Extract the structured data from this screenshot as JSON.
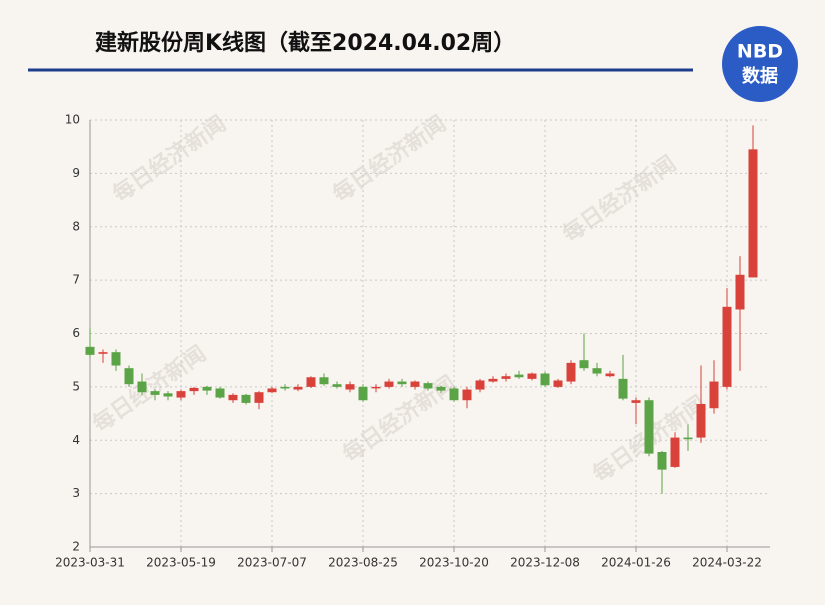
{
  "chart_data": {
    "type": "candlestick",
    "title": "建新股份周K线图（截至2024.04.02周）",
    "logo": {
      "top": "NBD",
      "bottom": "数据"
    },
    "watermark": "每日经济新闻",
    "categories": [
      "2023-03-31",
      null,
      null,
      null,
      null,
      null,
      null,
      "2023-05-19",
      null,
      null,
      null,
      null,
      null,
      null,
      "2023-07-07",
      null,
      null,
      null,
      null,
      null,
      null,
      "2023-08-25",
      null,
      null,
      null,
      null,
      null,
      null,
      "2023-10-20",
      null,
      null,
      null,
      null,
      null,
      null,
      "2023-12-08",
      null,
      null,
      null,
      null,
      null,
      null,
      "2024-01-26",
      null,
      null,
      null,
      null,
      null,
      null,
      "2024-03-22",
      null,
      null
    ],
    "open": [
      5.75,
      5.62,
      5.65,
      5.35,
      5.1,
      4.92,
      4.88,
      4.8,
      4.92,
      5.0,
      4.97,
      4.75,
      4.85,
      4.7,
      4.9,
      5.0,
      4.95,
      5.0,
      5.18,
      5.05,
      4.95,
      5.0,
      4.98,
      5.0,
      5.1,
      5.0,
      5.07,
      5.0,
      4.97,
      4.75,
      4.95,
      5.1,
      5.15,
      5.23,
      5.15,
      5.25,
      5.0,
      5.1,
      5.5,
      5.35,
      5.2,
      5.15,
      4.7,
      4.75,
      3.78,
      3.5,
      4.05,
      4.05,
      4.6,
      5.0,
      6.45,
      7.05
    ],
    "high": [
      6.1,
      5.7,
      5.7,
      5.4,
      5.25,
      4.95,
      4.92,
      4.95,
      5.0,
      5.02,
      5.0,
      4.88,
      4.87,
      4.92,
      5.0,
      5.05,
      5.05,
      5.2,
      5.25,
      5.1,
      5.1,
      5.05,
      5.05,
      5.15,
      5.15,
      5.12,
      5.1,
      5.02,
      5.0,
      5.0,
      5.15,
      5.2,
      5.25,
      5.3,
      5.27,
      5.28,
      5.15,
      5.5,
      6.0,
      5.45,
      5.3,
      5.6,
      4.8,
      4.8,
      3.8,
      4.15,
      4.3,
      5.4,
      5.5,
      6.85,
      7.45,
      9.9
    ],
    "low": [
      5.55,
      5.45,
      5.3,
      5.0,
      4.85,
      4.75,
      4.75,
      4.75,
      4.85,
      4.85,
      4.78,
      4.7,
      4.67,
      4.58,
      4.88,
      4.93,
      4.92,
      4.98,
      5.02,
      4.97,
      4.9,
      4.72,
      4.9,
      4.97,
      5.0,
      4.95,
      4.93,
      4.88,
      4.72,
      4.6,
      4.9,
      5.08,
      5.1,
      5.15,
      5.12,
      5.0,
      4.98,
      5.05,
      5.3,
      5.2,
      5.18,
      4.75,
      4.3,
      3.7,
      3.0,
      3.48,
      3.8,
      3.95,
      4.5,
      4.95,
      5.3,
      7.05
    ],
    "close": [
      5.6,
      5.65,
      5.4,
      5.05,
      4.9,
      4.85,
      4.82,
      4.92,
      4.98,
      4.93,
      4.8,
      4.85,
      4.7,
      4.9,
      4.97,
      4.97,
      5.0,
      5.18,
      5.05,
      5.0,
      5.05,
      4.75,
      5.0,
      5.1,
      5.05,
      5.1,
      4.97,
      4.93,
      4.75,
      4.95,
      5.12,
      5.15,
      5.2,
      5.18,
      5.25,
      5.03,
      5.12,
      5.45,
      5.35,
      5.25,
      5.25,
      4.78,
      4.75,
      3.75,
      3.45,
      4.05,
      4.02,
      4.68,
      5.1,
      6.5,
      7.1,
      9.45
    ],
    "up_color": "#d9413b",
    "down_color": "#5aa346",
    "ylim": [
      2,
      10
    ],
    "yticks": [
      2,
      3,
      4,
      5,
      6,
      7,
      8,
      9,
      10
    ],
    "grid": true
  }
}
